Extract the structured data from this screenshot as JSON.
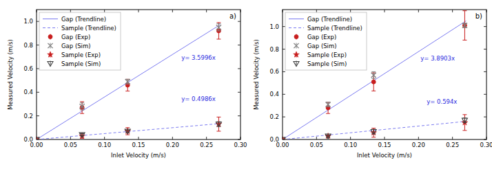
{
  "chart_data": [
    {
      "type": "scatter",
      "title": "a)",
      "x_label": "Inlet Velocity (m/s)",
      "y_label": "Measured Velocity (m/s)",
      "xlim": [
        0,
        0.3
      ],
      "ylim": [
        0,
        1.1
      ],
      "xticks": [
        {
          "value": 0,
          "label": "0.00"
        },
        {
          "value": 0.05,
          "label": "0.05"
        },
        {
          "value": 0.1,
          "label": "0.10"
        },
        {
          "value": 0.15,
          "label": "0.15"
        },
        {
          "value": 0.2,
          "label": "0.20"
        },
        {
          "value": 0.25,
          "label": "0.25"
        },
        {
          "value": 0.3,
          "label": "0.30"
        }
      ],
      "yticks": [
        {
          "value": 0,
          "label": "0.0"
        },
        {
          "value": 0.2,
          "label": "0.2"
        },
        {
          "value": 0.4,
          "label": "0.4"
        },
        {
          "value": 0.6,
          "label": "0.6"
        },
        {
          "value": 0.8,
          "label": "0.8"
        },
        {
          "value": 1,
          "label": "1.0"
        }
      ],
      "legend": "upper left",
      "grid": false,
      "annotations": [
        {
          "text": "y= 3.5996x",
          "x": 0.213,
          "y": 0.675
        },
        {
          "text": "y= 0.4986x",
          "x": 0.213,
          "y": 0.326
        }
      ],
      "series": [
        {
          "name": "Gap (Trendline)",
          "type": "line",
          "color": "#7b7bf0",
          "line_style": "solid",
          "x": [
            0,
            0.27
          ],
          "values": [
            0,
            0.9719
          ]
        },
        {
          "name": "Sample (Trendline)",
          "type": "line",
          "color": "#7b7bf0",
          "line_style": "dashed",
          "x": [
            0,
            0.27
          ],
          "values": [
            0,
            0.1346
          ]
        },
        {
          "name": "Gap (Exp)",
          "type": "scatter",
          "color": "#c81e1e",
          "marker": "circle",
          "x": [
            0,
            0.067,
            0.134,
            0.268
          ],
          "values": [
            0,
            0.27,
            0.46,
            0.92
          ],
          "errors": [
            0,
            0.05,
            0.05,
            0.07
          ]
        },
        {
          "name": "Gap (Sim)",
          "type": "scatter",
          "color": "#808080",
          "marker": "x",
          "x": [
            0,
            0.067,
            0.134,
            0.268
          ],
          "values": [
            0,
            0.28,
            0.49,
            0.95
          ],
          "errors": [
            0,
            0.03,
            0.02,
            0.03
          ]
        },
        {
          "name": "Sample (Exp)",
          "type": "scatter",
          "color": "#c81e1e",
          "marker": "star",
          "x": [
            0,
            0.067,
            0.134,
            0.268
          ],
          "values": [
            0,
            0.03,
            0.07,
            0.13
          ],
          "errors": [
            0,
            0.02,
            0.03,
            0.06
          ]
        },
        {
          "name": "Sample (Sim)",
          "type": "scatter",
          "color": "#404040",
          "marker": "triangle_down",
          "x": [
            0,
            0.067,
            0.134,
            0.268
          ],
          "values": [
            0,
            0.04,
            0.07,
            0.13
          ],
          "errors": [
            0,
            0.01,
            0.01,
            0.02
          ]
        }
      ]
    },
    {
      "type": "scatter",
      "title": "b)",
      "x_label": "Inlet Velocity (m/s)",
      "y_label": "Measured Velocity (m/s)",
      "xlim": [
        0,
        0.3
      ],
      "ylim": [
        0,
        1.15
      ],
      "xticks": [
        {
          "value": 0,
          "label": "0.00"
        },
        {
          "value": 0.05,
          "label": "0.05"
        },
        {
          "value": 0.1,
          "label": "0.10"
        },
        {
          "value": 0.15,
          "label": "0.15"
        },
        {
          "value": 0.2,
          "label": "0.20"
        },
        {
          "value": 0.25,
          "label": "0.25"
        },
        {
          "value": 0.3,
          "label": "0.30"
        }
      ],
      "yticks": [
        {
          "value": 0,
          "label": "0.0"
        },
        {
          "value": 0.2,
          "label": "0.2"
        },
        {
          "value": 0.4,
          "label": "0.4"
        },
        {
          "value": 0.6,
          "label": "0.6"
        },
        {
          "value": 0.8,
          "label": "0.8"
        },
        {
          "value": 1,
          "label": "1.0"
        }
      ],
      "legend": "upper left",
      "grid": false,
      "annotations": [
        {
          "text": "y= 3.8903x",
          "x": 0.203,
          "y": 0.7
        },
        {
          "text": "y= 0.594x",
          "x": 0.212,
          "y": 0.316
        }
      ],
      "series": [
        {
          "name": "Gap (Trendline)",
          "type": "line",
          "color": "#7b7bf0",
          "line_style": "solid",
          "x": [
            0,
            0.27
          ],
          "values": [
            0,
            1.0504
          ]
        },
        {
          "name": "Sample (Trendline)",
          "type": "line",
          "color": "#7b7bf0",
          "line_style": "dashed",
          "x": [
            0,
            0.27
          ],
          "values": [
            0,
            0.1604
          ]
        },
        {
          "name": "Gap (Exp)",
          "type": "scatter",
          "color": "#c81e1e",
          "marker": "circle",
          "x": [
            0,
            0.067,
            0.134,
            0.268
          ],
          "values": [
            0,
            0.28,
            0.51,
            1.01
          ],
          "errors": [
            0,
            0.05,
            0.08,
            0.13
          ]
        },
        {
          "name": "Gap (Sim)",
          "type": "scatter",
          "color": "#808080",
          "marker": "x",
          "x": [
            0,
            0.067,
            0.134,
            0.268
          ],
          "values": [
            0,
            0.31,
            0.57,
            1.01
          ],
          "errors": [
            0,
            0.02,
            0.03,
            0.02
          ]
        },
        {
          "name": "Sample (Exp)",
          "type": "scatter",
          "color": "#c81e1e",
          "marker": "star",
          "x": [
            0,
            0.067,
            0.134,
            0.268
          ],
          "values": [
            0,
            0.03,
            0.06,
            0.15
          ],
          "errors": [
            0,
            0.01,
            0.04,
            0.07
          ]
        },
        {
          "name": "Sample (Sim)",
          "type": "scatter",
          "color": "#404040",
          "marker": "triangle_down",
          "x": [
            0,
            0.067,
            0.134,
            0.268
          ],
          "values": [
            0,
            0.03,
            0.07,
            0.17
          ],
          "errors": [
            0,
            0.01,
            0.02,
            0.02
          ]
        }
      ]
    }
  ]
}
